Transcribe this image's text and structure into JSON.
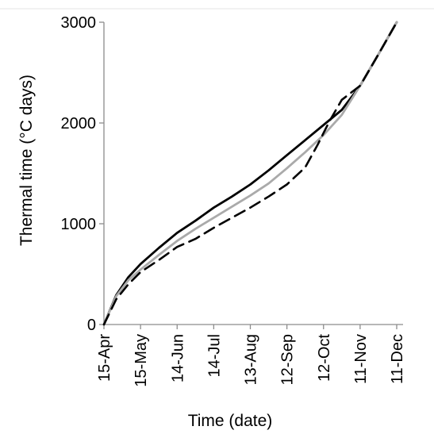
{
  "chart_data": {
    "type": "line",
    "title": "",
    "xlabel": "Time (date)",
    "ylabel": "Thermal time (°C days)",
    "ylim": [
      0,
      3000
    ],
    "yticks": [
      0,
      1000,
      2000,
      3000
    ],
    "xticks": [
      "15-Apr",
      "15-May",
      "14-Jun",
      "14-Jul",
      "13-Aug",
      "12-Sep",
      "12-Oct",
      "11-Nov",
      "11-Dec"
    ],
    "x_unit": "days after 15-Apr",
    "xlim": [
      0,
      240
    ],
    "grid": false,
    "legend": "none",
    "series": [
      {
        "color": "#000000",
        "dash": "solid",
        "points": [
          [
            0,
            0
          ],
          [
            10,
            290
          ],
          [
            20,
            470
          ],
          [
            30,
            600
          ],
          [
            45,
            760
          ],
          [
            60,
            910
          ],
          [
            75,
            1030
          ],
          [
            90,
            1160
          ],
          [
            105,
            1270
          ],
          [
            120,
            1390
          ],
          [
            135,
            1530
          ],
          [
            150,
            1680
          ],
          [
            165,
            1830
          ],
          [
            180,
            1980
          ],
          [
            195,
            2130
          ],
          [
            210,
            2370
          ],
          [
            225,
            2680
          ],
          [
            240,
            3000
          ]
        ]
      },
      {
        "color": "#aaaaaa",
        "dash": "solid",
        "points": [
          [
            0,
            0
          ],
          [
            10,
            280
          ],
          [
            20,
            440
          ],
          [
            30,
            545
          ],
          [
            45,
            690
          ],
          [
            60,
            830
          ],
          [
            75,
            950
          ],
          [
            90,
            1060
          ],
          [
            105,
            1170
          ],
          [
            120,
            1280
          ],
          [
            135,
            1400
          ],
          [
            150,
            1550
          ],
          [
            165,
            1710
          ],
          [
            180,
            1880
          ],
          [
            195,
            2080
          ],
          [
            210,
            2370
          ],
          [
            225,
            2680
          ],
          [
            240,
            3000
          ]
        ]
      },
      {
        "color": "#000000",
        "dash": "dashed",
        "points": [
          [
            0,
            0
          ],
          [
            10,
            250
          ],
          [
            20,
            400
          ],
          [
            30,
            520
          ],
          [
            45,
            640
          ],
          [
            60,
            770
          ],
          [
            75,
            850
          ],
          [
            90,
            960
          ],
          [
            105,
            1060
          ],
          [
            120,
            1160
          ],
          [
            135,
            1270
          ],
          [
            150,
            1390
          ],
          [
            165,
            1560
          ],
          [
            175,
            1780
          ],
          [
            185,
            2020
          ],
          [
            195,
            2230
          ],
          [
            210,
            2370
          ],
          [
            225,
            2680
          ],
          [
            240,
            3000
          ]
        ]
      }
    ]
  }
}
